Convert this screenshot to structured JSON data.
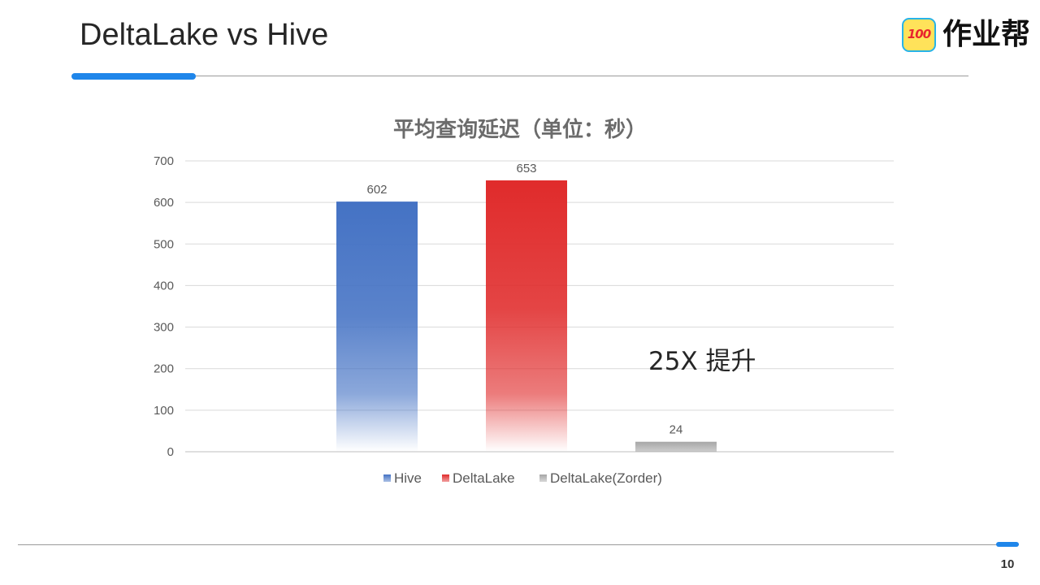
{
  "slide": {
    "title": "DeltaLake vs Hive",
    "page_number": "10",
    "logo": {
      "badge_text": "100",
      "text": "作业帮"
    },
    "callout": "25X 提升"
  },
  "colors": {
    "accent": "#1f86ea",
    "hive": "#4472c4",
    "deltalake": "#e02b2b",
    "deltalake_zorder": "#a6a6a6"
  },
  "chart_data": {
    "type": "bar",
    "title": "平均查询延迟（单位：秒）",
    "series": [
      {
        "name": "Hive",
        "values": [
          602
        ],
        "color": "#4472c4"
      },
      {
        "name": "DeltaLake",
        "values": [
          653
        ],
        "color": "#e02b2b"
      },
      {
        "name": "DeltaLake(Zorder)",
        "values": [
          24
        ],
        "color": "#a6a6a6"
      }
    ],
    "ylim": [
      0,
      700
    ],
    "yticks": [
      0,
      100,
      200,
      300,
      400,
      500,
      600,
      700
    ],
    "grid": true,
    "legend": "bottom"
  }
}
